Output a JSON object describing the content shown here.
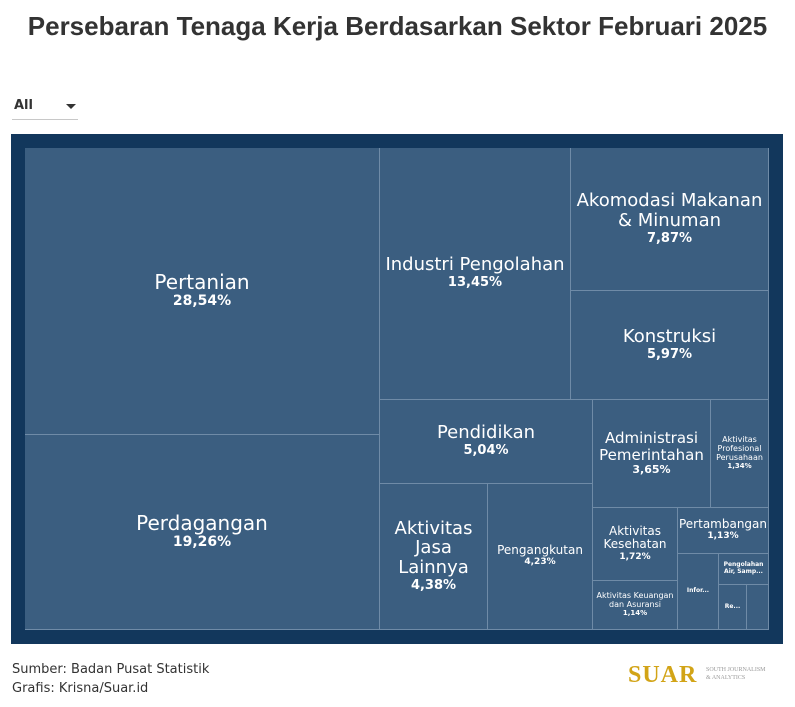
{
  "title": "Persebaran Tenaga Kerja Berdasarkan Sektor Februari 2025",
  "filter": {
    "value": "All"
  },
  "chart_data": {
    "type": "treemap",
    "title": "Persebaran Tenaga Kerja Berdasarkan Sektor Februari 2025",
    "unit": "%",
    "items": [
      {
        "label": "Pertanian",
        "value": 28.54,
        "display": "28,54%"
      },
      {
        "label": "Perdagangan",
        "value": 19.26,
        "display": "19,26%"
      },
      {
        "label": "Industri Pengolahan",
        "value": 13.45,
        "display": "13,45%"
      },
      {
        "label": "Akomodasi Makanan & Minuman",
        "value": 7.87,
        "display": "7,87%"
      },
      {
        "label": "Konstruksi",
        "value": 5.97,
        "display": "5,97%"
      },
      {
        "label": "Pendidikan",
        "value": 5.04,
        "display": "5,04%"
      },
      {
        "label": "Aktivitas Jasa Lainnya",
        "value": 4.38,
        "display": "4,38%"
      },
      {
        "label": "Pengangkutan",
        "value": 4.23,
        "display": "4,23%"
      },
      {
        "label": "Administrasi Pemerintahan",
        "value": 3.65,
        "display": "3,65%"
      },
      {
        "label": "Aktivitas Kesehatan",
        "value": 1.72,
        "display": "1,72%"
      },
      {
        "label": "Aktivitas Profesional Perusahaan",
        "value": 1.34,
        "display": "1,34%"
      },
      {
        "label": "Aktivitas Keuangan dan Asuransi",
        "value": 1.14,
        "display": "1,14%"
      },
      {
        "label": "Pertambangan",
        "value": 1.13,
        "display": "1,13%"
      },
      {
        "label": "Pengolahan Air, Samp...",
        "value": null,
        "display": ""
      },
      {
        "label": "Infor...",
        "value": null,
        "display": ""
      },
      {
        "label": "Re...",
        "value": null,
        "display": ""
      },
      {
        "label": "",
        "value": null,
        "display": ""
      }
    ]
  },
  "footer": {
    "source": "Sumber: Badan Pusat Statistik",
    "credit": "Grafis: Krisna/Suar.id"
  },
  "logo": {
    "word": "SUAR",
    "tagline_1": "SOUTH JOURNALISM",
    "tagline_2": "& ANALYTICS"
  },
  "colors": {
    "tile": "#3b5e80",
    "frame": "#12375c",
    "logo": "#d2a417"
  }
}
